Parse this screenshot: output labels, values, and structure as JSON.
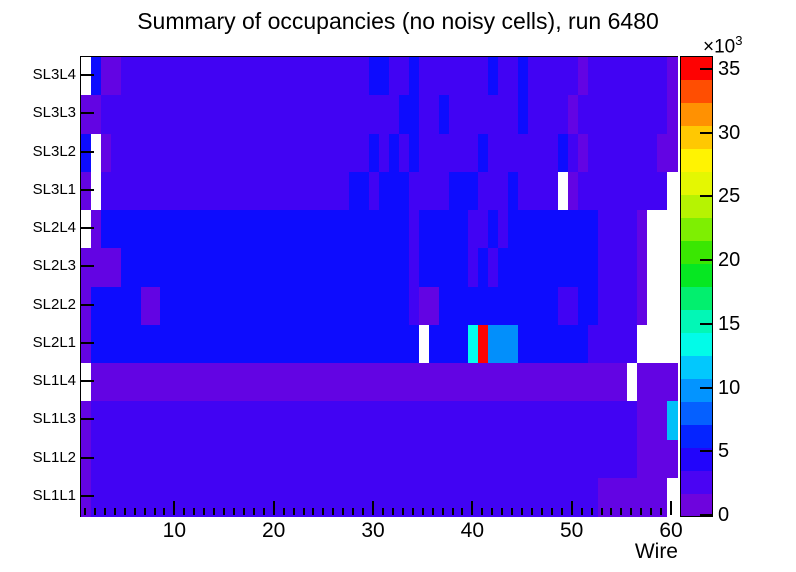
{
  "chart_data": {
    "type": "heatmap",
    "title": "Summary of occupancies (no noisy cells), run 6480",
    "xlabel": "Wire",
    "x_axis": {
      "range": [
        0.5,
        60.5
      ],
      "n_wires": 60,
      "major_ticks": [
        10,
        20,
        30,
        40,
        50,
        60
      ],
      "minor_tick_step": 1
    },
    "y_axis": {
      "labels_top_to_bottom": [
        "SL3L4",
        "SL3L3",
        "SL3L2",
        "SL3L1",
        "SL2L4",
        "SL2L3",
        "SL2L2",
        "SL2L1",
        "SL1L4",
        "SL1L3",
        "SL1L2",
        "SL1L1"
      ]
    },
    "colorbar": {
      "exponent_prefix": "×10",
      "exponent_power": "3",
      "ticks": [
        0,
        5,
        10,
        15,
        20,
        25,
        30,
        35
      ],
      "zmax_k": 36,
      "band_count": 20,
      "band_colors_bottom_to_top": [
        "#6e04dd",
        "#4a04f3",
        "#2205fb",
        "#0524ff",
        "#0560ff",
        "#0394ff",
        "#02c8fd",
        "#02fbe8",
        "#02f7b6",
        "#02ef6e",
        "#06e722",
        "#3ae702",
        "#7eef02",
        "#b6f302",
        "#e4f702",
        "#fff302",
        "#ffc802",
        "#ff9102",
        "#ff4e02",
        "#fe0202"
      ]
    },
    "value_classes": {
      "W": {
        "color": "#ffffff",
        "value_k": 0,
        "meaning": "empty / masked cell"
      },
      "V": {
        "color": "#6304e3",
        "value_k": 1.1
      },
      "D": {
        "color": "#4103f3",
        "value_k": 2.9
      },
      "B": {
        "color": "#0d0cfe",
        "value_k": 5.0
      },
      "S": {
        "color": "#028ffb",
        "value_k": 9.8
      },
      "K": {
        "color": "#02c0f8",
        "value_k": 11.6
      },
      "C": {
        "color": "#03fdee",
        "value_k": 13.6
      },
      "R": {
        "color": "#fe0202",
        "value_k": 35.2
      }
    },
    "rows": [
      {
        "label": "SL3L4",
        "runs": [
          [
            1,
            1,
            "W"
          ],
          [
            2,
            2,
            "B"
          ],
          [
            3,
            4,
            "V"
          ],
          [
            5,
            29,
            "D"
          ],
          [
            30,
            31,
            "B"
          ],
          [
            32,
            33,
            "D"
          ],
          [
            34,
            34,
            "B"
          ],
          [
            35,
            41,
            "D"
          ],
          [
            42,
            42,
            "B"
          ],
          [
            43,
            44,
            "D"
          ],
          [
            45,
            45,
            "B"
          ],
          [
            46,
            50,
            "D"
          ],
          [
            51,
            51,
            "V"
          ],
          [
            52,
            59,
            "D"
          ],
          [
            60,
            60,
            "V"
          ]
        ]
      },
      {
        "label": "SL3L3",
        "runs": [
          [
            1,
            2,
            "V"
          ],
          [
            3,
            32,
            "D"
          ],
          [
            33,
            34,
            "B"
          ],
          [
            35,
            36,
            "D"
          ],
          [
            37,
            37,
            "B"
          ],
          [
            38,
            44,
            "D"
          ],
          [
            45,
            45,
            "B"
          ],
          [
            46,
            49,
            "D"
          ],
          [
            50,
            50,
            "V"
          ],
          [
            51,
            59,
            "D"
          ],
          [
            60,
            60,
            "V"
          ]
        ]
      },
      {
        "label": "SL3L2",
        "runs": [
          [
            1,
            1,
            "B"
          ],
          [
            2,
            2,
            "W"
          ],
          [
            3,
            3,
            "V"
          ],
          [
            4,
            29,
            "D"
          ],
          [
            30,
            30,
            "B"
          ],
          [
            31,
            31,
            "D"
          ],
          [
            32,
            32,
            "B"
          ],
          [
            33,
            33,
            "D"
          ],
          [
            34,
            34,
            "B"
          ],
          [
            35,
            40,
            "D"
          ],
          [
            41,
            41,
            "B"
          ],
          [
            42,
            48,
            "D"
          ],
          [
            49,
            49,
            "B"
          ],
          [
            50,
            50,
            "D"
          ],
          [
            51,
            51,
            "V"
          ],
          [
            52,
            58,
            "D"
          ],
          [
            59,
            60,
            "V"
          ]
        ]
      },
      {
        "label": "SL3L1",
        "runs": [
          [
            1,
            1,
            "V"
          ],
          [
            2,
            2,
            "W"
          ],
          [
            3,
            27,
            "D"
          ],
          [
            28,
            29,
            "B"
          ],
          [
            30,
            30,
            "D"
          ],
          [
            31,
            33,
            "B"
          ],
          [
            34,
            37,
            "D"
          ],
          [
            38,
            40,
            "B"
          ],
          [
            41,
            43,
            "D"
          ],
          [
            44,
            44,
            "B"
          ],
          [
            45,
            48,
            "D"
          ],
          [
            49,
            49,
            "W"
          ],
          [
            50,
            50,
            "V"
          ],
          [
            51,
            59,
            "D"
          ],
          [
            60,
            60,
            "W"
          ]
        ]
      },
      {
        "label": "SL2L4",
        "runs": [
          [
            1,
            1,
            "W"
          ],
          [
            2,
            2,
            "V"
          ],
          [
            3,
            33,
            "B"
          ],
          [
            34,
            34,
            "D"
          ],
          [
            35,
            39,
            "B"
          ],
          [
            40,
            41,
            "D"
          ],
          [
            42,
            42,
            "B"
          ],
          [
            43,
            43,
            "D"
          ],
          [
            44,
            52,
            "B"
          ],
          [
            53,
            56,
            "D"
          ],
          [
            57,
            57,
            "V"
          ],
          [
            58,
            60,
            "W"
          ]
        ]
      },
      {
        "label": "SL2L3",
        "runs": [
          [
            1,
            4,
            "V"
          ],
          [
            5,
            33,
            "B"
          ],
          [
            34,
            34,
            "D"
          ],
          [
            35,
            39,
            "B"
          ],
          [
            40,
            40,
            "D"
          ],
          [
            41,
            41,
            "B"
          ],
          [
            42,
            42,
            "D"
          ],
          [
            43,
            52,
            "B"
          ],
          [
            53,
            56,
            "D"
          ],
          [
            57,
            57,
            "V"
          ],
          [
            58,
            60,
            "W"
          ]
        ]
      },
      {
        "label": "SL2L2",
        "runs": [
          [
            1,
            1,
            "V"
          ],
          [
            2,
            6,
            "B"
          ],
          [
            7,
            8,
            "V"
          ],
          [
            9,
            33,
            "B"
          ],
          [
            34,
            34,
            "D"
          ],
          [
            35,
            36,
            "V"
          ],
          [
            37,
            48,
            "B"
          ],
          [
            49,
            50,
            "D"
          ],
          [
            51,
            52,
            "B"
          ],
          [
            53,
            56,
            "D"
          ],
          [
            57,
            57,
            "V"
          ],
          [
            58,
            60,
            "W"
          ]
        ]
      },
      {
        "label": "SL2L1",
        "runs": [
          [
            1,
            1,
            "V"
          ],
          [
            2,
            34,
            "B"
          ],
          [
            35,
            35,
            "W"
          ],
          [
            36,
            39,
            "B"
          ],
          [
            40,
            40,
            "C"
          ],
          [
            41,
            41,
            "R"
          ],
          [
            42,
            44,
            "S"
          ],
          [
            45,
            51,
            "B"
          ],
          [
            52,
            56,
            "D"
          ],
          [
            57,
            60,
            "W"
          ]
        ]
      },
      {
        "label": "SL1L4",
        "runs": [
          [
            1,
            1,
            "W"
          ],
          [
            2,
            55,
            "V"
          ],
          [
            56,
            56,
            "W"
          ],
          [
            57,
            60,
            "V"
          ]
        ]
      },
      {
        "label": "SL1L3",
        "runs": [
          [
            1,
            1,
            "V"
          ],
          [
            2,
            56,
            "D"
          ],
          [
            57,
            59,
            "V"
          ],
          [
            60,
            60,
            "K"
          ]
        ]
      },
      {
        "label": "SL1L2",
        "runs": [
          [
            1,
            1,
            "V"
          ],
          [
            2,
            56,
            "D"
          ],
          [
            57,
            60,
            "V"
          ]
        ]
      },
      {
        "label": "SL1L1",
        "runs": [
          [
            1,
            1,
            "V"
          ],
          [
            2,
            52,
            "D"
          ],
          [
            53,
            59,
            "V"
          ],
          [
            60,
            60,
            "W"
          ]
        ]
      }
    ]
  }
}
